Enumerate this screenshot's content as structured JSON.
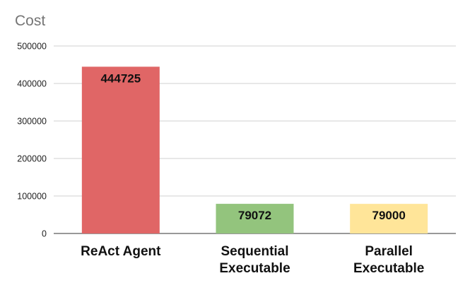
{
  "chart_data": {
    "type": "bar",
    "title": "Cost",
    "categories": [
      [
        "ReAct Agent"
      ],
      [
        "Sequential",
        "Executable"
      ],
      [
        "Parallel",
        "Executable"
      ]
    ],
    "values": [
      444725,
      79072,
      79000
    ],
    "data_labels": [
      "444725",
      "79072",
      "79000"
    ],
    "colors": [
      "#e06666",
      "#93c47d",
      "#ffe599"
    ],
    "ylim": [
      0,
      500000
    ],
    "yticks": [
      0,
      100000,
      200000,
      300000,
      400000,
      500000
    ],
    "ytick_labels": [
      "0",
      "100000",
      "200000",
      "300000",
      "400000",
      "500000"
    ],
    "grid": true,
    "legend": "none"
  }
}
